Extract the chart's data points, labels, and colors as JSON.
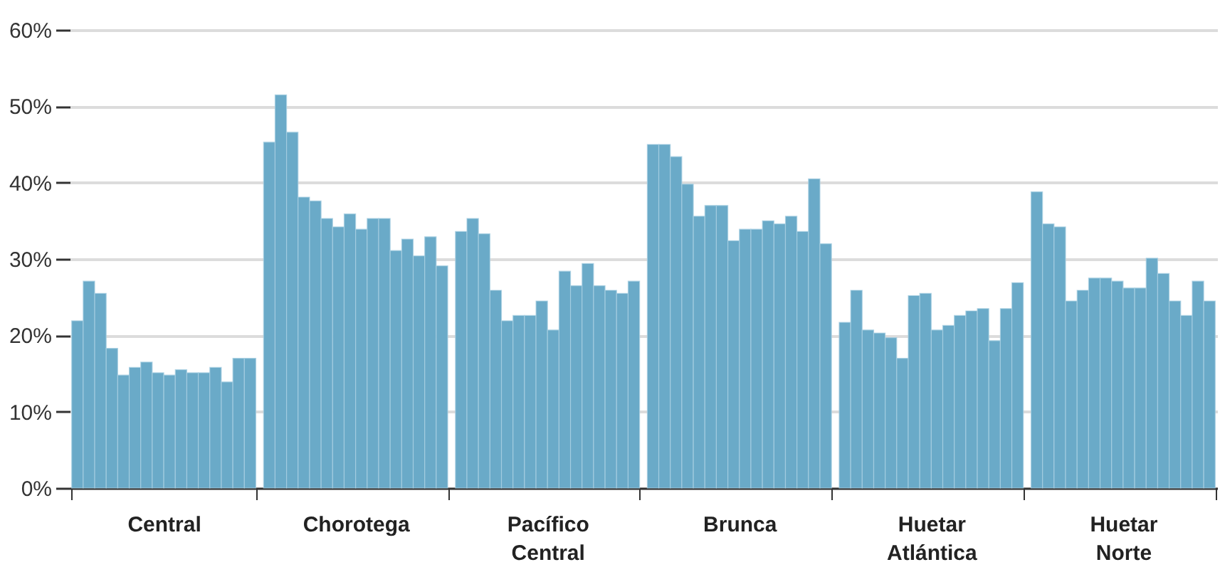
{
  "chart_data": {
    "type": "bar",
    "categories": [
      "Central",
      "Chorotega",
      "Pacífico Central",
      "Brunca",
      "Huetar Atlántica",
      "Huetar Norte"
    ],
    "ylim": [
      0,
      60
    ],
    "yticks": [
      {
        "value": 0,
        "label": "0%"
      },
      {
        "value": 10,
        "label": "10%"
      },
      {
        "value": 20,
        "label": "20%"
      },
      {
        "value": 30,
        "label": "30%"
      },
      {
        "value": 40,
        "label": "40%"
      },
      {
        "value": 50,
        "label": "50%"
      },
      {
        "value": 60,
        "label": "60%"
      }
    ],
    "grid": "y",
    "series": [
      {
        "color": "#6aaac8",
        "values": [
          21.9,
          45.3,
          33.6,
          45.0,
          21.7,
          38.8
        ]
      },
      {
        "color": "#6aaac8",
        "values": [
          27.1,
          51.5,
          35.3,
          45.0,
          25.9,
          34.6
        ]
      },
      {
        "color": "#6aaac8",
        "values": [
          25.5,
          46.6,
          33.3,
          43.4,
          20.7,
          34.2
        ]
      },
      {
        "color": "#6aaac8",
        "values": [
          18.3,
          38.1,
          25.9,
          39.8,
          20.3,
          24.5
        ]
      },
      {
        "color": "#6aaac8",
        "values": [
          14.8,
          37.6,
          21.9,
          35.6,
          19.7,
          25.9
        ]
      },
      {
        "color": "#6aaac8",
        "values": [
          15.8,
          35.3,
          22.6,
          37.0,
          17.0,
          27.5
        ]
      },
      {
        "color": "#6aaac8",
        "values": [
          16.5,
          34.2,
          22.6,
          37.0,
          25.2,
          27.5
        ]
      },
      {
        "color": "#6aaac8",
        "values": [
          15.1,
          35.9,
          24.5,
          32.4,
          25.5,
          27.1
        ]
      },
      {
        "color": "#6aaac8",
        "values": [
          14.8,
          33.9,
          20.7,
          33.9,
          20.7,
          26.2
        ]
      },
      {
        "color": "#6aaac8",
        "values": [
          15.5,
          35.3,
          28.4,
          33.9,
          21.3,
          26.2
        ]
      },
      {
        "color": "#6aaac8",
        "values": [
          15.1,
          35.3,
          26.5,
          35.0,
          22.6,
          30.1
        ]
      },
      {
        "color": "#6aaac8",
        "values": [
          15.1,
          31.1,
          29.4,
          34.6,
          23.2,
          28.1
        ]
      },
      {
        "color": "#6aaac8",
        "values": [
          15.8,
          32.6,
          26.5,
          35.6,
          23.5,
          24.5
        ]
      },
      {
        "color": "#6aaac8",
        "values": [
          13.9,
          30.4,
          25.9,
          33.6,
          19.3,
          22.6
        ]
      },
      {
        "color": "#6aaac8",
        "values": [
          17.0,
          32.9,
          25.5,
          40.5,
          23.5,
          27.1
        ]
      },
      {
        "color": "#6aaac8",
        "values": [
          17.0,
          29.1,
          27.1,
          32.0,
          26.9,
          24.5
        ]
      }
    ]
  }
}
